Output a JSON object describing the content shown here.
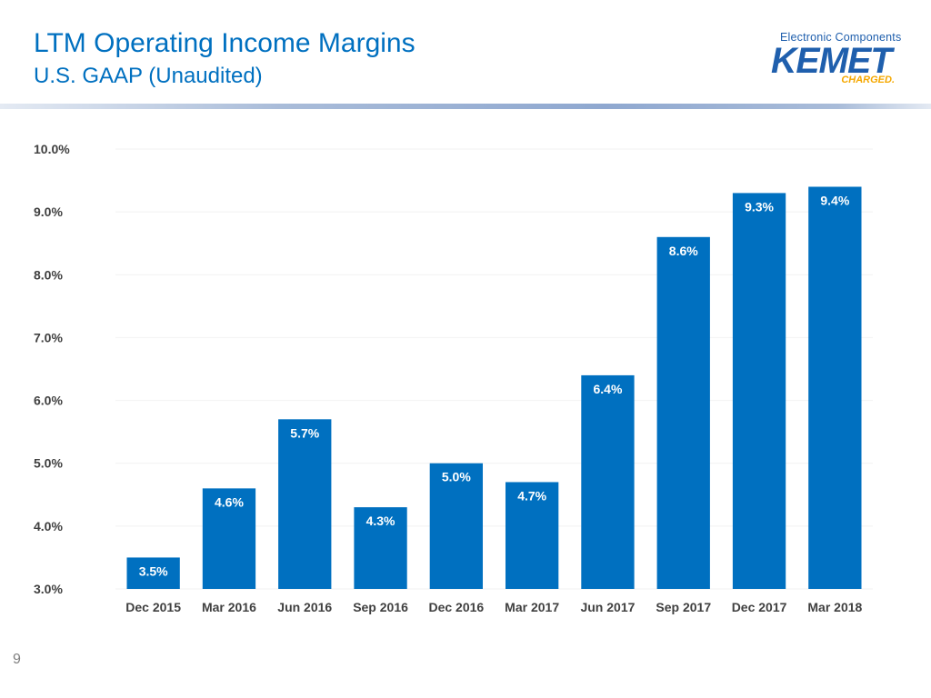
{
  "header": {
    "title": "LTM Operating Income Margins",
    "subtitle": "U.S. GAAP (Unaudited)"
  },
  "logo": {
    "tagline": "Electronic Components",
    "wordmark": "KEMET",
    "charged": "CHARGED."
  },
  "page_number": "9",
  "colors": {
    "accent": "#0070C0",
    "bar": "#0070C0",
    "logo_blue": "#1F5FAD",
    "logo_orange": "#F5A800"
  },
  "chart_data": {
    "type": "bar",
    "title": "",
    "xlabel": "",
    "ylabel": "",
    "categories": [
      "Dec 2015",
      "Mar 2016",
      "Jun 2016",
      "Sep 2016",
      "Dec 2016",
      "Mar 2017",
      "Jun 2017",
      "Sep 2017",
      "Dec 2017",
      "Mar 2018"
    ],
    "values": [
      3.5,
      4.6,
      5.7,
      4.3,
      5.0,
      4.7,
      6.4,
      8.6,
      9.3,
      9.4
    ],
    "data_labels": [
      "3.5%",
      "4.6%",
      "5.7%",
      "4.3%",
      "5.0%",
      "4.7%",
      "6.4%",
      "8.6%",
      "9.3%",
      "9.4%"
    ],
    "ylim": [
      3.0,
      10.0
    ],
    "yticks": [
      3.0,
      4.0,
      5.0,
      6.0,
      7.0,
      8.0,
      9.0,
      10.0
    ],
    "ytick_labels": [
      "3.0%",
      "4.0%",
      "5.0%",
      "6.0%",
      "7.0%",
      "8.0%",
      "9.0%",
      "10.0%"
    ],
    "grid": true,
    "legend": "none"
  }
}
